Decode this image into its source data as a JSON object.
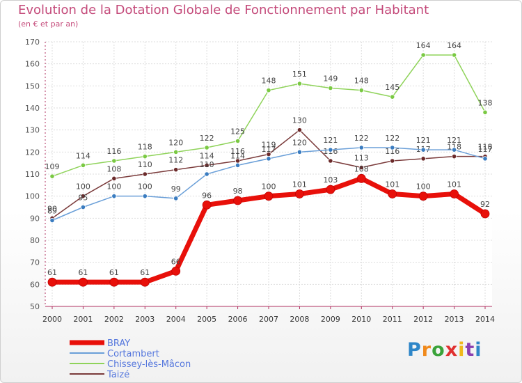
{
  "title": "Evolution de la Dotation Globale de Fonctionnement par Habitant",
  "subtitle": "(en € et par an)",
  "logo": {
    "text": "Proxiti",
    "letters": [
      "P",
      "r",
      "o",
      "x",
      "i",
      "t",
      "i"
    ],
    "colors": [
      "#2e86c8",
      "#f08a1c",
      "#3aa33a",
      "#e03030",
      "#f0b81c",
      "#8a3fb0",
      "#2e86c8"
    ]
  },
  "chart_data": {
    "type": "line",
    "title": "Evolution de la Dotation Globale de Fonctionnement par Habitant",
    "subtitle": "(en € et par an)",
    "xlabel": "",
    "ylabel": "",
    "ylim": [
      50,
      170
    ],
    "yticks": [
      50,
      60,
      70,
      80,
      90,
      100,
      110,
      120,
      130,
      140,
      150,
      160,
      170
    ],
    "x": [
      2000,
      2001,
      2002,
      2003,
      2004,
      2005,
      2006,
      2007,
      2008,
      2009,
      2010,
      2011,
      2012,
      2013,
      2014
    ],
    "grid": true,
    "legend_position": "bottom-left",
    "series": [
      {
        "name": "Chissey-lès-Mâcon",
        "color": "#8fd35a",
        "dot": "#7ac943",
        "width": 1.5,
        "values": [
          109,
          114,
          116,
          118,
          120,
          122,
          125,
          148,
          151,
          149,
          148,
          145,
          164,
          164,
          138
        ]
      },
      {
        "name": "Taizé",
        "color": "#7a3a3a",
        "dot": "#6b2a2a",
        "width": 1.5,
        "values": [
          90,
          100,
          108,
          110,
          112,
          114,
          116,
          119,
          130,
          116,
          113,
          116,
          117,
          118,
          118
        ]
      },
      {
        "name": "Cortambert",
        "color": "#6a9fd8",
        "dot": "#3a7cc0",
        "width": 1.5,
        "values": [
          89,
          95,
          100,
          100,
          99,
          110,
          114,
          117,
          120,
          121,
          122,
          122,
          121,
          121,
          117
        ]
      },
      {
        "name": "BRAY",
        "color": "#e8100a",
        "dot": "#e8100a",
        "width": 7,
        "values": [
          61,
          61,
          61,
          61,
          66,
          96,
          98,
          100,
          101,
          103,
          108,
          101,
          100,
          101,
          92
        ]
      }
    ],
    "legend": [
      "BRAY",
      "Cortambert",
      "Chissey-lès-Mâcon",
      "Taizé"
    ]
  }
}
